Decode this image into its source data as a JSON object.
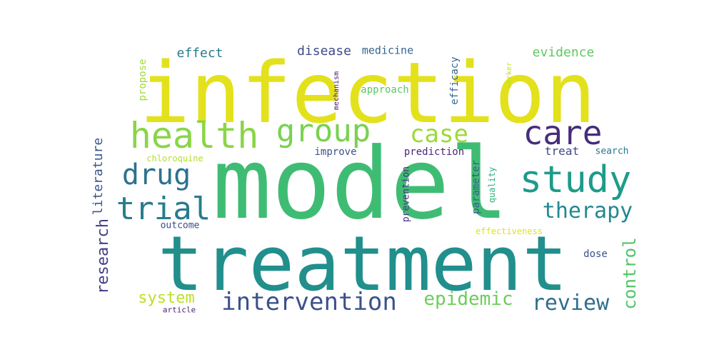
{
  "word_cloud": {
    "words": [
      {
        "text": "infection",
        "color": "#e3e11b"
      },
      {
        "text": "model",
        "color": "#3fbc73"
      },
      {
        "text": "treatment",
        "color": "#218f8c"
      },
      {
        "text": "health",
        "color": "#8ad547"
      },
      {
        "text": "group",
        "color": "#7ad151"
      },
      {
        "text": "care",
        "color": "#472c7a"
      },
      {
        "text": "case",
        "color": "#9dd93b"
      },
      {
        "text": "study",
        "color": "#1e9b8a"
      },
      {
        "text": "drug",
        "color": "#2c728e"
      },
      {
        "text": "trial",
        "color": "#287c8e"
      },
      {
        "text": "therapy",
        "color": "#23888e"
      },
      {
        "text": "intervention",
        "color": "#3b518b"
      },
      {
        "text": "review",
        "color": "#2e6e8e"
      },
      {
        "text": "epidemic",
        "color": "#6ccd5a"
      },
      {
        "text": "system",
        "color": "#bddf26"
      },
      {
        "text": "control",
        "color": "#52c569"
      },
      {
        "text": "research",
        "color": "#433e85"
      },
      {
        "text": "literature",
        "color": "#38588c"
      },
      {
        "text": "effect",
        "color": "#29798e"
      },
      {
        "text": "disease",
        "color": "#3e4a89"
      },
      {
        "text": "medicine",
        "color": "#31668e"
      },
      {
        "text": "evidence",
        "color": "#5ec962"
      },
      {
        "text": "propose",
        "color": "#a2da37"
      },
      {
        "text": "mechanism",
        "color": "#48186a"
      },
      {
        "text": "approach",
        "color": "#5ac864"
      },
      {
        "text": "efficacy",
        "color": "#33638d"
      },
      {
        "text": "worker",
        "color": "#c2df23"
      },
      {
        "text": "improve",
        "color": "#3b528b"
      },
      {
        "text": "prediction",
        "color": "#482878"
      },
      {
        "text": "treat",
        "color": "#404688"
      },
      {
        "text": "search",
        "color": "#2a768e"
      },
      {
        "text": "chloroquine",
        "color": "#b5de2b"
      },
      {
        "text": "parameter",
        "color": "#365d8d"
      },
      {
        "text": "quality",
        "color": "#2db27d"
      },
      {
        "text": "prevention",
        "color": "#46317e"
      },
      {
        "text": "outcome",
        "color": "#3e4c8a"
      },
      {
        "text": "effectiveness",
        "color": "#dde318"
      },
      {
        "text": "dose",
        "color": "#3b528b"
      },
      {
        "text": "article",
        "color": "#482475"
      }
    ]
  }
}
